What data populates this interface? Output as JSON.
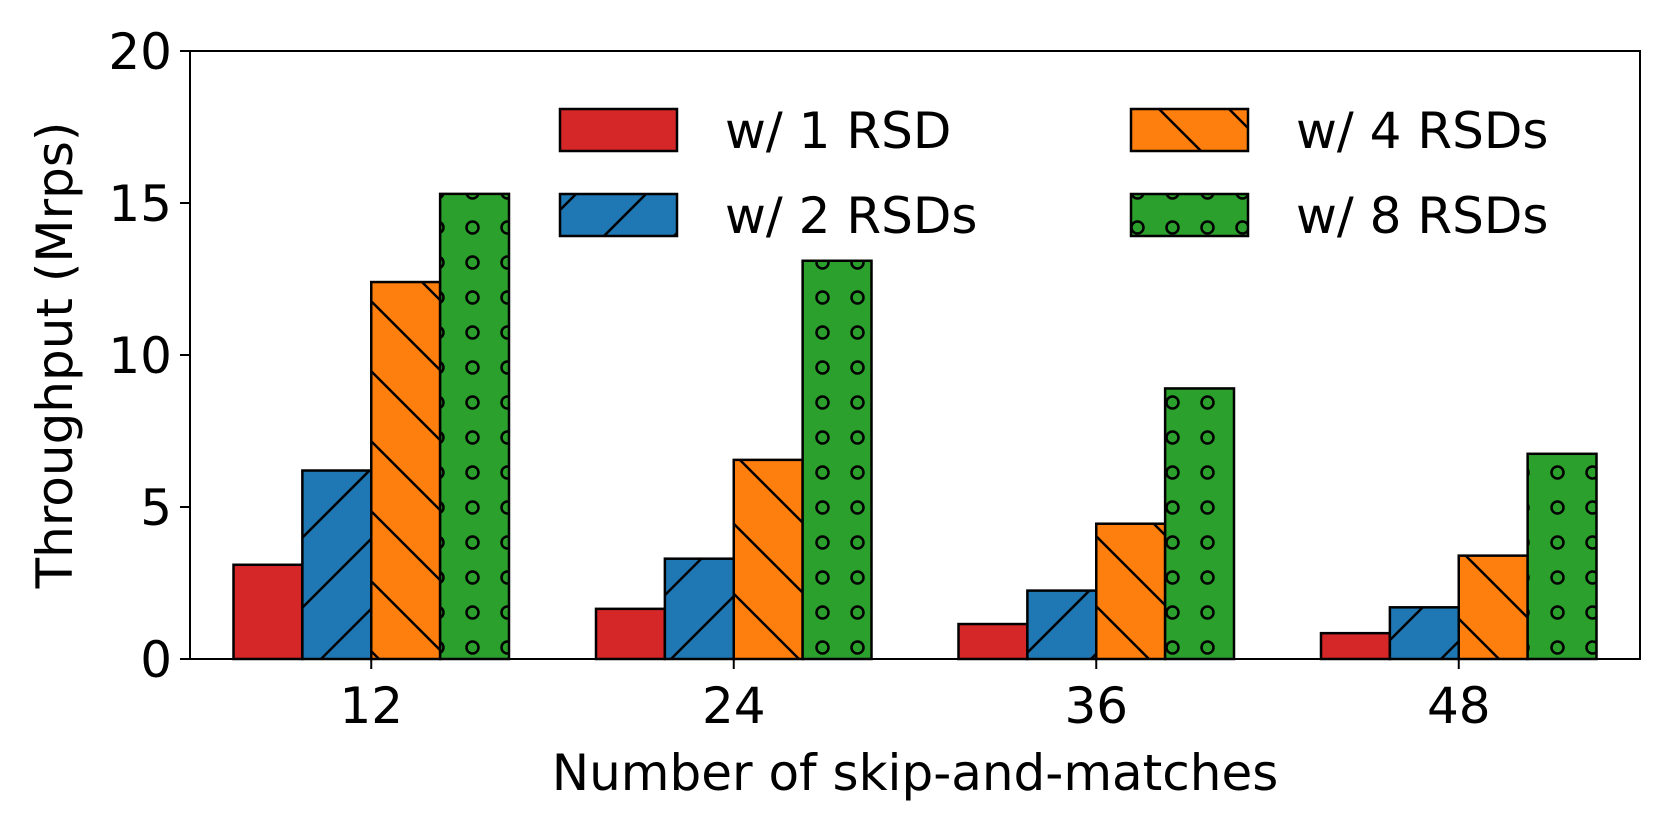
{
  "chart_data": {
    "type": "bar",
    "categories": [
      "12",
      "24",
      "36",
      "48"
    ],
    "xlabel": "Number of skip-and-matches",
    "ylabel": "Throughput (Mrps)",
    "ylim": [
      0,
      20
    ],
    "yticks": [
      "0",
      "5",
      "10",
      "15",
      "20"
    ],
    "grid": false,
    "legend_position": "top-right",
    "series": [
      {
        "name": "w/ 1 RSD",
        "color": "#d62728",
        "hatch": "none",
        "values": [
          3.1,
          1.65,
          1.15,
          0.85
        ]
      },
      {
        "name": "w/ 2 RSDs",
        "color": "#1f77b4",
        "hatch": "forward-diagonal",
        "values": [
          6.2,
          3.3,
          2.25,
          1.7
        ]
      },
      {
        "name": "w/ 4 RSDs",
        "color": "#ff7f0e",
        "hatch": "back-diagonal",
        "values": [
          12.4,
          6.55,
          4.45,
          3.4
        ]
      },
      {
        "name": "w/ 8 RSDs",
        "color": "#2ca02c",
        "hatch": "circles",
        "values": [
          15.3,
          13.1,
          8.9,
          6.75
        ]
      }
    ]
  }
}
